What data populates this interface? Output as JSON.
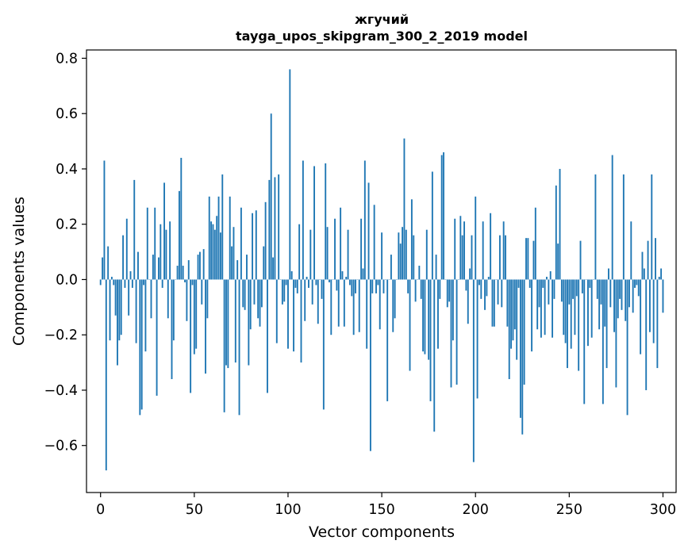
{
  "chart_data": {
    "type": "bar",
    "title": "жгучий",
    "subtitle": "tayga_upos_skipgram_300_2_2019 model",
    "xlabel": "Vector components",
    "ylabel": "Components values",
    "xlim": [
      -7.5,
      307
    ],
    "ylim": [
      -0.77,
      0.83
    ],
    "xticks": [
      0,
      50,
      100,
      150,
      200,
      250,
      300
    ],
    "yticks": [
      -0.6,
      -0.4,
      -0.2,
      0.0,
      0.2,
      0.4,
      0.6,
      0.8
    ],
    "xtick_labels": [
      "0",
      "50",
      "100",
      "150",
      "200",
      "250",
      "300"
    ],
    "ytick_labels": [
      "−0.6",
      "−0.4",
      "−0.2",
      "0.0",
      "0.2",
      "0.4",
      "0.6",
      "0.8"
    ],
    "bar_color": "#1f77b4",
    "grid": false,
    "values": [
      -0.02,
      0.08,
      0.43,
      -0.69,
      0.12,
      -0.22,
      0.01,
      -0.02,
      -0.13,
      -0.31,
      -0.22,
      -0.2,
      0.16,
      -0.03,
      0.22,
      -0.13,
      0.03,
      -0.03,
      0.36,
      -0.23,
      0.1,
      -0.49,
      -0.47,
      -0.02,
      -0.26,
      0.26,
      0.0,
      -0.14,
      0.09,
      0.26,
      -0.42,
      0.08,
      0.2,
      -0.03,
      0.35,
      0.18,
      -0.14,
      0.21,
      -0.36,
      -0.22,
      0.0,
      0.05,
      0.32,
      0.44,
      0.05,
      -0.01,
      -0.15,
      0.07,
      -0.41,
      -0.02,
      -0.27,
      -0.25,
      0.09,
      0.1,
      -0.09,
      0.11,
      -0.34,
      -0.14,
      0.3,
      0.21,
      0.2,
      0.18,
      0.23,
      0.3,
      0.17,
      0.38,
      -0.48,
      -0.31,
      -0.32,
      0.3,
      0.12,
      0.19,
      -0.3,
      0.07,
      -0.49,
      0.26,
      -0.1,
      -0.11,
      0.09,
      -0.31,
      -0.18,
      0.24,
      -0.09,
      0.25,
      -0.14,
      -0.17,
      -0.1,
      0.12,
      0.28,
      -0.41,
      0.36,
      0.6,
      0.08,
      0.37,
      -0.23,
      0.38,
      0.0,
      -0.09,
      -0.08,
      -0.02,
      -0.25,
      0.76,
      0.03,
      -0.26,
      -0.03,
      -0.05,
      0.2,
      -0.3,
      0.43,
      -0.15,
      0.01,
      -0.03,
      0.18,
      -0.09,
      0.41,
      -0.02,
      -0.16,
      0.0,
      -0.07,
      -0.47,
      0.42,
      0.19,
      -0.01,
      -0.2,
      0.0,
      0.22,
      -0.04,
      -0.17,
      0.26,
      0.03,
      -0.17,
      0.01,
      0.18,
      -0.02,
      -0.06,
      -0.2,
      -0.05,
      0.0,
      -0.19,
      0.22,
      0.04,
      0.43,
      -0.25,
      0.35,
      -0.62,
      -0.05,
      0.27,
      -0.05,
      -0.02,
      -0.18,
      0.17,
      -0.05,
      0.0,
      -0.44,
      0.0,
      0.09,
      -0.19,
      -0.14,
      0.0,
      0.17,
      0.13,
      0.19,
      0.51,
      0.18,
      -0.05,
      -0.33,
      0.29,
      0.16,
      -0.08,
      0.0,
      0.05,
      -0.07,
      -0.26,
      -0.27,
      0.18,
      -0.29,
      -0.44,
      0.39,
      -0.55,
      0.09,
      -0.25,
      -0.07,
      0.45,
      0.46,
      0.0,
      -0.1,
      -0.08,
      -0.39,
      -0.22,
      0.22,
      -0.38,
      0.0,
      0.23,
      0.16,
      0.21,
      -0.04,
      -0.16,
      0.04,
      0.16,
      -0.66,
      0.3,
      -0.43,
      -0.02,
      -0.07,
      0.21,
      -0.11,
      -0.06,
      0.01,
      0.24,
      -0.17,
      -0.17,
      0.0,
      -0.09,
      0.16,
      -0.1,
      0.21,
      0.16,
      -0.17,
      -0.36,
      -0.25,
      -0.22,
      -0.18,
      -0.29,
      -0.03,
      -0.5,
      -0.56,
      -0.38,
      0.15,
      0.15,
      -0.03,
      -0.26,
      0.14,
      0.26,
      -0.18,
      -0.1,
      -0.21,
      -0.03,
      -0.2,
      0.01,
      -0.09,
      0.03,
      -0.21,
      -0.07,
      0.34,
      0.13,
      0.4,
      -0.08,
      -0.2,
      -0.23,
      -0.32,
      -0.09,
      -0.25,
      -0.07,
      -0.2,
      -0.06,
      -0.33,
      0.14,
      -0.05,
      -0.45,
      0.0,
      -0.24,
      -0.03,
      -0.21,
      0.0,
      0.38,
      -0.07,
      -0.18,
      -0.09,
      -0.45,
      -0.17,
      -0.32,
      0.04,
      -0.1,
      0.45,
      -0.19,
      -0.39,
      -0.14,
      -0.07,
      -0.11,
      0.38,
      -0.15,
      -0.49,
      -0.1,
      0.21,
      -0.12,
      -0.03,
      -0.02,
      -0.06,
      -0.27,
      0.1,
      0.04,
      -0.4,
      0.14,
      -0.19,
      0.38,
      -0.23,
      0.15,
      -0.32,
      0.01,
      0.04,
      -0.12
    ]
  }
}
